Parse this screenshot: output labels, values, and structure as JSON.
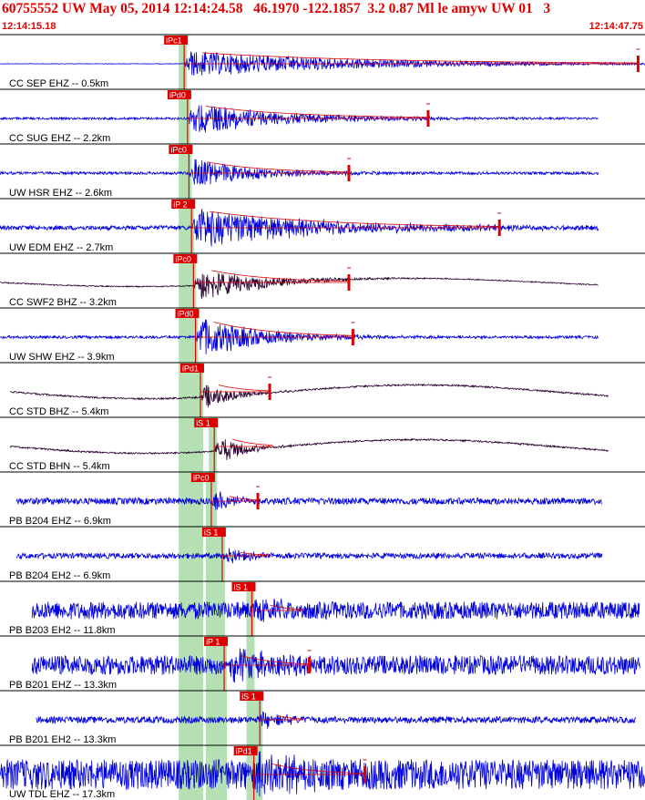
{
  "header": {
    "title": "60755552 UW May 05, 2014 12:14:24.58   46.1970 -122.1857  3.2 0.87 Ml le amyw UW 01   3",
    "time_start": "12:14:15.18",
    "time_end": "12:14:47.75"
  },
  "colors": {
    "trace_blue": "#0000dd",
    "trace_dark": "#2a0030",
    "pick_red": "#dd0000",
    "window_green": "#b4e0b4",
    "frame": "#000000"
  },
  "chart_data": {
    "type": "line",
    "title": "60755552 UW May 05, 2014 12:14:24.58   46.1970 -122.1857  3.2 0.87 Ml le amyw UW 01   3",
    "x_range": [
      "12:14:15.18",
      "12:14:47.75"
    ],
    "xlabel": "",
    "ylabel": "",
    "traces": [
      {
        "label": "CC SEP EHZ -- 0.5km",
        "color": "blue",
        "phase": "iPc1",
        "pick_time": "12:14:24.48",
        "trace_start": "12:14:15.18",
        "trace_end": "12:14:47.75",
        "coda_end": "12:14:47.4",
        "amp_pick_time": "12:14:47.4",
        "amp": 0.45,
        "noise": 0.01,
        "drift": 0
      },
      {
        "label": "CC SUG EHZ -- 2.2km",
        "color": "blue",
        "phase": "iPd0",
        "pick_time": "12:14:24.65",
        "trace_start": "12:14:15.18",
        "trace_end": "12:14:45.4",
        "coda_end": "12:14:36.8",
        "amp_pick_time": "12:14:36.8",
        "amp": 0.55,
        "noise": 0.04,
        "drift": 0
      },
      {
        "label": "UW HSR EHZ -- 2.6km",
        "color": "blue",
        "phase": "iPc0",
        "pick_time": "12:14:24.72",
        "trace_start": "12:14:15.18",
        "trace_end": "12:14:45.4",
        "coda_end": "12:14:32.8",
        "amp_pick_time": "12:14:32.8",
        "amp": 0.55,
        "noise": 0.05,
        "drift": 0
      },
      {
        "label": "UW EDM EHZ -- 2.7km",
        "color": "blue",
        "phase": "iP 2",
        "pick_time": "12:14:24.85",
        "trace_start": "12:14:15.18",
        "trace_end": "12:14:45.4",
        "coda_end": "12:14:40.4",
        "amp_pick_time": "12:14:40.4",
        "amp": 0.7,
        "noise": 0.08,
        "drift": 0
      },
      {
        "label": "CC SWF2 BHZ -- 3.2km",
        "color": "dark",
        "phase": "iPc0",
        "pick_time": "12:14:24.95",
        "trace_start": "12:14:15.18",
        "trace_end": "12:14:45.4",
        "coda_end": "12:14:32.8",
        "amp_pick_time": "12:14:32.8",
        "amp": 0.6,
        "noise": 0.02,
        "drift": 0.3
      },
      {
        "label": "UW SHW EHZ -- 3.9km",
        "color": "blue",
        "phase": "iPd0",
        "pick_time": "12:14:25.05",
        "trace_start": "12:14:15.18",
        "trace_end": "12:14:45.4",
        "coda_end": "12:14:33.0",
        "amp_pick_time": "12:14:33.0",
        "amp": 0.75,
        "noise": 0.05,
        "drift": 0
      },
      {
        "label": "CC STD BHZ -- 5.4km",
        "color": "dark",
        "phase": "iPd1",
        "pick_time": "12:14:25.30",
        "trace_start": "12:14:15.7",
        "trace_end": "12:14:45.9",
        "coda_end": "12:14:28.8",
        "amp_pick_time": "12:14:28.8",
        "amp": 0.5,
        "noise": 0.03,
        "drift": 0.5
      },
      {
        "label": "CC STD BHN -- 5.4km",
        "color": "dark",
        "phase": "iS 1",
        "pick_time": "12:14:26.0",
        "trace_start": "12:14:15.7",
        "trace_end": "12:14:45.9",
        "coda_end": "12:14:29.0",
        "amp_pick_time": null,
        "amp": 0.6,
        "noise": 0.03,
        "drift": 0.5
      },
      {
        "label": "PB B204 EHZ -- 6.9km",
        "color": "blue",
        "phase": "iPc0",
        "pick_time": "12:14:25.85",
        "trace_start": "12:14:16.0",
        "trace_end": "12:14:45.6",
        "coda_end": "12:14:28.2",
        "amp_pick_time": "12:14:28.2",
        "amp": 0.5,
        "noise": 0.12,
        "drift": 0
      },
      {
        "label": "PB B204 EH2 -- 6.9km",
        "color": "blue",
        "phase": "iS 1",
        "pick_time": "12:14:26.4",
        "trace_start": "12:14:16.0",
        "trace_end": "12:14:45.6",
        "coda_end": "12:14:28.8",
        "amp_pick_time": null,
        "amp": 0.35,
        "noise": 0.1,
        "drift": 0
      },
      {
        "label": "PB B203 EH2 -- 11.8km",
        "color": "blue",
        "phase": "iS 1",
        "pick_time": "12:14:27.9",
        "trace_start": "12:14:16.8",
        "trace_end": "12:14:47.5",
        "coda_end": "12:14:30.5",
        "amp_pick_time": null,
        "amp": 0.5,
        "noise": 0.32,
        "drift": 0
      },
      {
        "label": "PB B201 EHZ -- 13.3km",
        "color": "blue",
        "phase": "iP 1",
        "pick_time": "12:14:26.5",
        "trace_start": "12:14:16.8",
        "trace_end": "12:14:47.5",
        "coda_end": "12:14:30.8",
        "amp_pick_time": "12:14:30.8",
        "amp": 0.6,
        "noise": 0.35,
        "drift": 0
      },
      {
        "label": "PB B201 EH2 -- 13.3km",
        "color": "blue",
        "phase": "iS 1",
        "pick_time": "12:14:28.3",
        "trace_start": "12:14:17.0",
        "trace_end": "12:14:47.3",
        "coda_end": "12:14:30.5",
        "amp_pick_time": null,
        "amp": 0.45,
        "noise": 0.12,
        "drift": 0
      },
      {
        "label": "UW TDL EHZ -- 17.3km",
        "color": "blue",
        "phase": "iPd1",
        "pick_time": "12:14:28.0",
        "trace_start": "12:14:15.18",
        "trace_end": "12:14:47.75",
        "coda_end": "12:14:33.6",
        "amp_pick_time": "12:14:33.6",
        "amp": 0.6,
        "noise": 0.55,
        "drift": 0
      }
    ]
  }
}
